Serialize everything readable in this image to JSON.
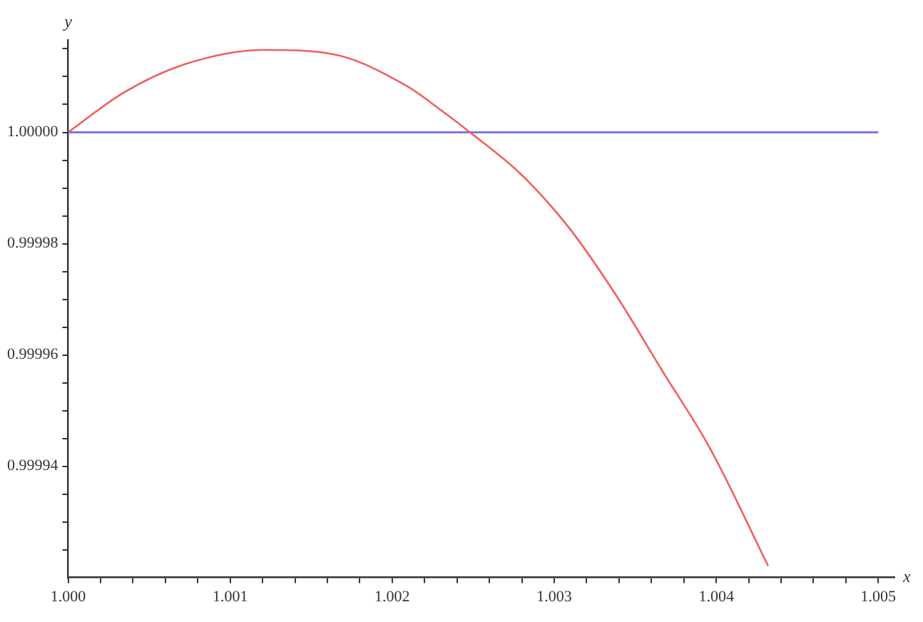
{
  "chart_data": {
    "type": "line",
    "xlabel": "x",
    "ylabel": "y",
    "series": [
      {
        "color": "#f06060",
        "x": [
          1.0,
          1.000341,
          1.000717,
          1.00121,
          1.00164,
          1.00208,
          1.0023,
          1.00248,
          1.002797,
          1.00309,
          1.00338,
          1.00367,
          1.00396,
          1.00432
        ],
        "values": [
          1.0,
          1.0000071,
          1.0000122,
          1.0000148,
          1.000014,
          1.0000085,
          1.000004,
          1.0,
          0.9999924,
          0.9999829,
          0.9999708,
          0.999957,
          0.9999433,
          0.9999221
        ]
      },
      {
        "color": "#6060f0",
        "x": [
          1.0,
          1.005
        ],
        "values": [
          1.0,
          1.0
        ]
      }
    ],
    "xlim": [
      1.0,
      1.0051
    ],
    "ylim": [
      0.99992,
      1.0000166
    ],
    "xticks": [
      {
        "value": 1.0,
        "label": "1.000"
      },
      {
        "value": 1.0002,
        "label": null
      },
      {
        "value": 1.0004,
        "label": null
      },
      {
        "value": 1.0006,
        "label": null
      },
      {
        "value": 1.0008,
        "label": null
      },
      {
        "value": 1.001,
        "label": "1.001"
      },
      {
        "value": 1.0012,
        "label": null
      },
      {
        "value": 1.0014,
        "label": null
      },
      {
        "value": 1.0016,
        "label": null
      },
      {
        "value": 1.0018,
        "label": null
      },
      {
        "value": 1.002,
        "label": "1.002"
      },
      {
        "value": 1.0022,
        "label": null
      },
      {
        "value": 1.0024,
        "label": null
      },
      {
        "value": 1.0026,
        "label": null
      },
      {
        "value": 1.0028,
        "label": null
      },
      {
        "value": 1.003,
        "label": "1.003"
      },
      {
        "value": 1.0032,
        "label": null
      },
      {
        "value": 1.0034,
        "label": null
      },
      {
        "value": 1.0036,
        "label": null
      },
      {
        "value": 1.0038,
        "label": null
      },
      {
        "value": 1.004,
        "label": "1.004"
      },
      {
        "value": 1.0042,
        "label": null
      },
      {
        "value": 1.0044,
        "label": null
      },
      {
        "value": 1.0046,
        "label": null
      },
      {
        "value": 1.0048,
        "label": null
      },
      {
        "value": 1.005,
        "label": "1.005"
      }
    ],
    "yticks": [
      {
        "value": 0.999925,
        "label": null
      },
      {
        "value": 0.99993,
        "label": null
      },
      {
        "value": 0.999935,
        "label": null
      },
      0.99994,
      {
        "value": 0.999945,
        "label": null
      },
      {
        "value": 0.99995,
        "label": null
      },
      {
        "value": 0.999955,
        "label": null
      },
      0.99996,
      {
        "value": 0.999965,
        "label": null
      },
      {
        "value": 0.99997,
        "label": null
      },
      {
        "value": 0.999975,
        "label": null
      },
      0.99998,
      {
        "value": 0.999985,
        "label": null
      },
      {
        "value": 0.99999,
        "label": null
      },
      {
        "value": 0.999995,
        "label": null
      },
      {
        "value": 1.0,
        "label": "1.00000"
      },
      {
        "value": 1.000005,
        "label": null
      },
      {
        "value": 1.00001,
        "label": null
      },
      {
        "value": 1.000015,
        "label": null
      }
    ],
    "grid": false,
    "legend": false,
    "marker": "none",
    "line_style": "solid"
  }
}
